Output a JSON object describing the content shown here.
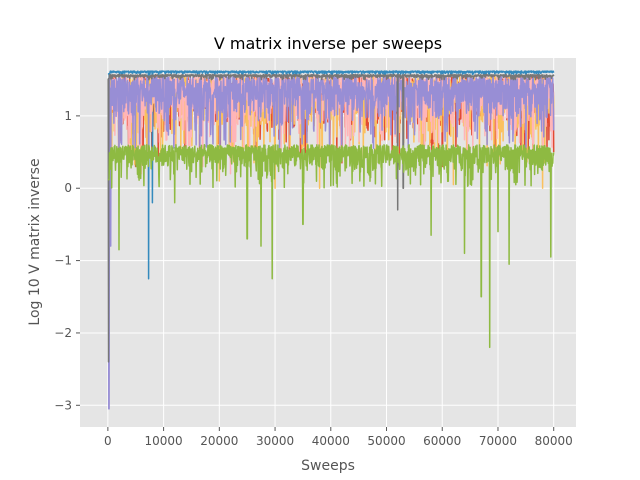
{
  "chart_data": {
    "type": "line",
    "title": "V matrix inverse per sweeps",
    "xlabel": "Sweeps",
    "ylabel": "Log 10 V matrix inverse",
    "xlim": [
      -5000,
      84000
    ],
    "ylim": [
      -3.3,
      1.8
    ],
    "xticks": [
      0,
      10000,
      20000,
      30000,
      40000,
      50000,
      60000,
      70000,
      80000
    ],
    "xtick_labels": [
      "0",
      "10000",
      "20000",
      "30000",
      "40000",
      "50000",
      "60000",
      "70000",
      "80000"
    ],
    "yticks": [
      -3,
      -2,
      -1,
      0,
      1
    ],
    "ytick_labels": [
      "−3",
      "−2",
      "−1",
      "0",
      "1"
    ],
    "grid": true,
    "background": "#E5E5E5",
    "series": [
      {
        "color": "#E24A33",
        "base": 0.4,
        "top": 1.55,
        "dips": [
          [
            300,
            0.2
          ],
          [
            5000,
            0.3
          ],
          [
            42000,
            0.35
          ],
          [
            60000,
            0.3
          ],
          [
            80000,
            0.5
          ]
        ]
      },
      {
        "color": "#348ABD",
        "base": 1.57,
        "top": 1.62,
        "dips": [
          [
            300,
            0.5
          ],
          [
            2500,
            1.2
          ],
          [
            7300,
            -1.25
          ],
          [
            8000,
            -0.2
          ],
          [
            67800,
            1.45
          ]
        ]
      },
      {
        "color": "#FBC15E",
        "base": 0.3,
        "top": 1.55,
        "dips": [
          [
            2000,
            0.0
          ],
          [
            20000,
            0.1
          ],
          [
            30000,
            0.0
          ],
          [
            38000,
            0.0
          ],
          [
            62000,
            0.05
          ],
          [
            78000,
            0.0
          ]
        ]
      },
      {
        "color": "#FFB5B8",
        "base": 0.5,
        "top": 1.55,
        "dips": [
          [
            4000,
            0.7
          ],
          [
            6000,
            0.2
          ],
          [
            17000,
            0.3
          ],
          [
            22000,
            0.2
          ]
        ]
      },
      {
        "color": "#988ED5",
        "base": 0.55,
        "top": 1.55,
        "dips": [
          [
            200,
            -3.05
          ],
          [
            500,
            -0.8
          ],
          [
            2000,
            0.0
          ],
          [
            80000,
            0.8
          ]
        ]
      },
      {
        "color": "#777777",
        "base": 1.5,
        "top": 1.57,
        "dips": [
          [
            100,
            -2.4
          ],
          [
            52000,
            -0.3
          ],
          [
            53000,
            0.0
          ]
        ]
      },
      {
        "color": "#8EBA42",
        "base": 0.0,
        "top": 0.6,
        "dips": [
          [
            2000,
            -0.85
          ],
          [
            12000,
            -0.2
          ],
          [
            25000,
            -0.7
          ],
          [
            27500,
            -0.8
          ],
          [
            29500,
            -1.25
          ],
          [
            35000,
            -0.5
          ],
          [
            58000,
            -0.65
          ],
          [
            64000,
            -0.9
          ],
          [
            67000,
            -1.5
          ],
          [
            68500,
            -2.2
          ],
          [
            70000,
            -0.6
          ],
          [
            72000,
            -1.05
          ],
          [
            79500,
            -0.95
          ]
        ]
      }
    ]
  }
}
